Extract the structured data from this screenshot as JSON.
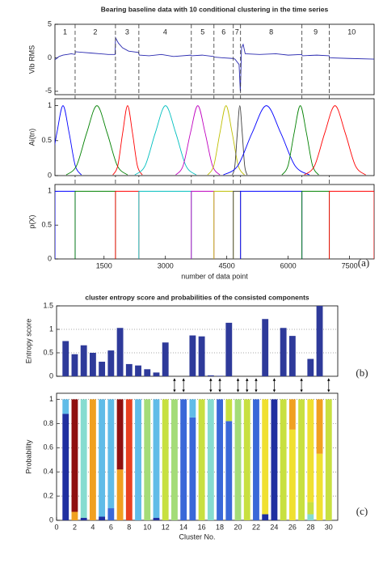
{
  "chart_data": [
    {
      "type": "line",
      "title": "Bearing baseline data with 10 conditional clustering in the time series",
      "ylabel": "Vib RMS",
      "xlim": [
        300,
        8100
      ],
      "ylim": [
        -5.5,
        5
      ],
      "yticks": [
        5,
        0,
        -5
      ],
      "cluster_labels": [
        "1",
        "2",
        "3",
        "4",
        "5",
        "6",
        "7",
        "8",
        "9",
        "10"
      ],
      "boundaries": [
        793,
        1779,
        2351,
        3633,
        4186,
        4659,
        4836,
        6336,
        7006
      ],
      "series": [
        {
          "color": "#2a2ab0",
          "x": [
            300,
            400,
            500,
            600,
            700,
            790,
            800,
            1000,
            1200,
            1400,
            1600,
            1770,
            1780,
            1850,
            1950,
            2100,
            2340,
            2360,
            2600,
            2900,
            3200,
            3620,
            3640,
            3900,
            4180,
            4200,
            4400,
            4650,
            4700,
            4800,
            4830,
            4840,
            4860,
            4900,
            4950,
            5300,
            5700,
            6000,
            6330,
            6350,
            6700,
            7000,
            7010,
            7500,
            8100
          ],
          "values": [
            -0.3,
            0.2,
            0.4,
            0.5,
            0.6,
            0.5,
            0.9,
            0.8,
            0.7,
            0.6,
            0.5,
            0.5,
            3.0,
            2.2,
            1.5,
            1.0,
            0.8,
            0.4,
            0.3,
            0.5,
            0.2,
            0.4,
            0.3,
            0.4,
            0.2,
            0.1,
            0,
            -0.1,
            -0.2,
            -1,
            -5,
            -3,
            1.5,
            2.0,
            0.6,
            0.5,
            0.6,
            0.4,
            0.5,
            0.3,
            0.4,
            0.3,
            0,
            -0.1,
            -0.2
          ]
        }
      ]
    },
    {
      "type": "smooth_line",
      "ylabel": "Ai(tn)",
      "xlim": [
        300,
        8100
      ],
      "ylim": [
        0,
        1.1
      ],
      "yticks": [
        0,
        0.5,
        1
      ],
      "series": [
        {
          "color": "#0000ff",
          "x": [
            47,
            197,
            347,
            497,
            647,
            797,
            947
          ],
          "values": [
            0.01,
            0.14,
            0.61,
            1,
            0.61,
            0.14,
            0.01
          ]
        },
        {
          "color": "#008000",
          "x": [
            576,
            826,
            1076,
            1326,
            1576,
            1826,
            2076
          ],
          "values": [
            0.01,
            0.14,
            0.61,
            1,
            0.61,
            0.14,
            0.01
          ]
        },
        {
          "color": "#ff0000",
          "x": [
            1715,
            1835,
            1955,
            2075,
            2195,
            2315,
            2435
          ],
          "values": [
            0.01,
            0.14,
            0.61,
            1,
            0.61,
            0.14,
            0.01
          ]
        },
        {
          "color": "#00bfbf",
          "x": [
            2252,
            2502,
            2752,
            3002,
            3252,
            3502,
            3752
          ],
          "values": [
            0.01,
            0.14,
            0.61,
            1,
            0.61,
            0.14,
            0.01
          ]
        },
        {
          "color": "#bf00bf",
          "x": [
            3251,
            3431,
            3611,
            3791,
            3971,
            4151,
            4331
          ],
          "values": [
            0.01,
            0.14,
            0.61,
            1,
            0.61,
            0.14,
            0.01
          ]
        },
        {
          "color": "#bfbf00",
          "x": [
            4031,
            4181,
            4331,
            4481,
            4631,
            4781,
            4931
          ],
          "values": [
            0.01,
            0.14,
            0.61,
            1,
            0.61,
            0.14,
            0.01
          ]
        },
        {
          "color": "#404040",
          "x": [
            4637,
            4697,
            4757,
            4817,
            4877,
            4937,
            4997
          ],
          "values": [
            0.01,
            0.14,
            0.61,
            1,
            0.61,
            0.14,
            0.01
          ]
        },
        {
          "color": "#0000ff",
          "x": [
            4418,
            4768,
            5118,
            5468,
            5818,
            6168,
            6518
          ],
          "values": [
            0.01,
            0.14,
            0.61,
            1,
            0.61,
            0.14,
            0.01
          ]
        },
        {
          "color": "#008000",
          "x": [
            5846,
            5996,
            6146,
            6296,
            6446,
            6596,
            6746
          ],
          "values": [
            0.01,
            0.14,
            0.61,
            1,
            0.61,
            0.14,
            0.01
          ]
        },
        {
          "color": "#ff0000",
          "x": [
            6394,
            6644,
            6894,
            7144,
            7394,
            7644,
            7894
          ],
          "values": [
            0.01,
            0.14,
            0.61,
            1,
            0.61,
            0.14,
            0.01
          ]
        }
      ]
    },
    {
      "type": "line",
      "ylabel": "p(X)",
      "xlabel": "number of data point",
      "annotation": "(a)",
      "xlim": [
        300,
        8100
      ],
      "ylim": [
        0,
        1.1
      ],
      "yticks": [
        0,
        0.5,
        1
      ],
      "xticks": [
        1500,
        3000,
        4500,
        6000,
        7500
      ],
      "series": [
        {
          "color": "#0000ff",
          "x": [
            300,
            300,
            793,
            793
          ],
          "values": [
            0,
            1,
            1,
            0
          ]
        },
        {
          "color": "#008000",
          "x": [
            793,
            793,
            1779,
            1779
          ],
          "values": [
            0,
            1,
            1,
            0
          ]
        },
        {
          "color": "#ff0000",
          "x": [
            1779,
            1779,
            2351,
            2351
          ],
          "values": [
            0,
            1,
            1,
            0
          ]
        },
        {
          "color": "#00bfbf",
          "x": [
            2351,
            2351,
            3633,
            3633
          ],
          "values": [
            0,
            1,
            1,
            0
          ]
        },
        {
          "color": "#bf00bf",
          "x": [
            3633,
            3633,
            4186,
            4186
          ],
          "values": [
            0,
            1,
            1,
            0
          ]
        },
        {
          "color": "#bfbf00",
          "x": [
            4186,
            4186,
            4659,
            4659
          ],
          "values": [
            0,
            1,
            1,
            0
          ]
        },
        {
          "color": "#404040",
          "x": [
            4659,
            4659,
            4836,
            4836
          ],
          "values": [
            0,
            1,
            1,
            0
          ]
        },
        {
          "color": "#0000ff",
          "x": [
            4836,
            4836,
            6336,
            6336
          ],
          "values": [
            0,
            1,
            1,
            0
          ]
        },
        {
          "color": "#008000",
          "x": [
            6336,
            6336,
            7006,
            7006
          ],
          "values": [
            0,
            1,
            1,
            0
          ]
        },
        {
          "color": "#ff0000",
          "x": [
            7006,
            7006,
            8100,
            8100
          ],
          "values": [
            0,
            1,
            1,
            0
          ]
        }
      ]
    },
    {
      "type": "bar",
      "title": "cluster entropy score and probabilities of the consisted components",
      "ylabel": "Entropy score",
      "annotation": "(b)",
      "xlim": [
        0,
        31
      ],
      "ylim": [
        0,
        1.5
      ],
      "yticks": [
        0,
        0.5,
        1,
        1.5
      ],
      "grid": true,
      "color": "#2e3a9a",
      "x": [
        1,
        2,
        3,
        4,
        5,
        6,
        7,
        8,
        9,
        10,
        11,
        12,
        13,
        14,
        15,
        16,
        17,
        18,
        19,
        20,
        21,
        22,
        23,
        24,
        25,
        26,
        27,
        28,
        29,
        30
      ],
      "values": [
        0.75,
        0.47,
        0.66,
        0.5,
        0.31,
        0.55,
        1.03,
        0.26,
        0.23,
        0.15,
        0.08,
        0.72,
        0,
        0,
        0.87,
        0.85,
        0.02,
        0.01,
        1.14,
        0,
        0,
        0,
        1.22,
        0,
        1.03,
        0.86,
        0,
        0.37,
        1.5,
        0
      ],
      "arrow_x": [
        13,
        14,
        17,
        18,
        20,
        21,
        22,
        24,
        27,
        30
      ]
    },
    {
      "type": "stacked_bar",
      "ylabel": "Probability",
      "xlabel": "Cluster No.",
      "annotation": "(c)",
      "xlim": [
        0,
        31
      ],
      "ylim": [
        0,
        1.05
      ],
      "yticks": [
        0,
        0.2,
        0.4,
        0.6,
        0.8,
        1
      ],
      "xticks": [
        0,
        2,
        4,
        6,
        8,
        10,
        12,
        14,
        16,
        18,
        20,
        22,
        24,
        26,
        28,
        30
      ],
      "grid": true,
      "x": [
        1,
        2,
        3,
        4,
        5,
        6,
        7,
        8,
        9,
        10,
        11,
        12,
        13,
        14,
        15,
        16,
        17,
        18,
        19,
        20,
        21,
        22,
        23,
        24,
        25,
        26,
        27,
        28,
        29,
        30
      ],
      "series": [
        {
          "color": "#1f2fa0",
          "values": [
            0.88,
            0,
            0.02,
            0,
            0.03,
            0,
            0,
            0,
            0,
            0,
            0.02,
            0,
            0,
            0,
            0,
            0,
            0,
            0,
            0,
            0,
            0,
            0,
            0.05,
            1,
            0,
            0,
            0,
            0,
            0,
            0
          ]
        },
        {
          "color": "#3a68d8",
          "values": [
            0,
            0,
            0,
            0,
            0,
            0.1,
            0,
            0,
            0,
            0,
            0,
            0,
            0,
            1,
            0.85,
            0,
            0,
            1,
            0.82,
            0,
            0,
            1,
            0,
            0,
            0,
            0,
            0,
            0,
            0,
            0
          ]
        },
        {
          "color": "#60bce8",
          "values": [
            0.12,
            0,
            0,
            0,
            0.97,
            0.9,
            0,
            0,
            1,
            0,
            0.98,
            0,
            0,
            0,
            0.15,
            0,
            0,
            0,
            0,
            0,
            0,
            0,
            0,
            0,
            0,
            0,
            0,
            0,
            0,
            0
          ]
        },
        {
          "color": "#86dcd0",
          "values": [
            0,
            0,
            0.98,
            0,
            0,
            0,
            0,
            0,
            0,
            0,
            0,
            0,
            0,
            0,
            0,
            0,
            1,
            0,
            0,
            0,
            0,
            0,
            0,
            0,
            0,
            0,
            0,
            0.05,
            0,
            0
          ]
        },
        {
          "color": "#a4dc78",
          "values": [
            0,
            0,
            0,
            0,
            0,
            0,
            0,
            0,
            0,
            1,
            0,
            0,
            1,
            0,
            0,
            0,
            0,
            0,
            0,
            1,
            0,
            0,
            0,
            0,
            0,
            0,
            0,
            0,
            0,
            0
          ]
        },
        {
          "color": "#c8e040",
          "values": [
            0,
            0,
            0,
            0,
            0,
            0,
            0,
            0,
            0,
            0,
            0,
            1,
            0,
            0,
            0,
            1,
            0,
            0,
            0.18,
            0,
            1,
            0,
            0,
            0,
            1,
            0,
            1,
            0.1,
            0,
            1
          ]
        },
        {
          "color": "#f0e030",
          "values": [
            0,
            0,
            0,
            0,
            0,
            0,
            0,
            0,
            0,
            0,
            0,
            0,
            0,
            0,
            0,
            0,
            0,
            0,
            0,
            0,
            0,
            0,
            0.95,
            0,
            0,
            0.75,
            0,
            0.85,
            0.55,
            0
          ]
        },
        {
          "color": "#f0a020",
          "values": [
            0,
            0.07,
            0,
            1,
            0,
            0,
            0.42,
            0,
            0,
            0,
            0,
            0,
            0,
            0,
            0,
            0,
            0,
            0,
            0,
            0,
            0,
            0,
            0,
            0,
            0,
            0.25,
            0,
            0,
            0.45,
            0
          ]
        },
        {
          "color": "#e84020",
          "values": [
            0,
            0,
            0,
            0,
            0,
            0,
            0,
            1,
            0,
            0,
            0,
            0,
            0,
            0,
            0,
            0,
            0,
            0,
            0,
            0,
            0,
            0,
            0,
            0,
            0,
            0,
            0,
            0,
            0,
            0
          ]
        },
        {
          "color": "#901010",
          "values": [
            0,
            0.93,
            0,
            0,
            0,
            0,
            0.58,
            0,
            0,
            0,
            0,
            0,
            0,
            0,
            0,
            0,
            0,
            0,
            0,
            0,
            0,
            0,
            0,
            0,
            0,
            0,
            0,
            0,
            0,
            0
          ]
        }
      ]
    }
  ]
}
